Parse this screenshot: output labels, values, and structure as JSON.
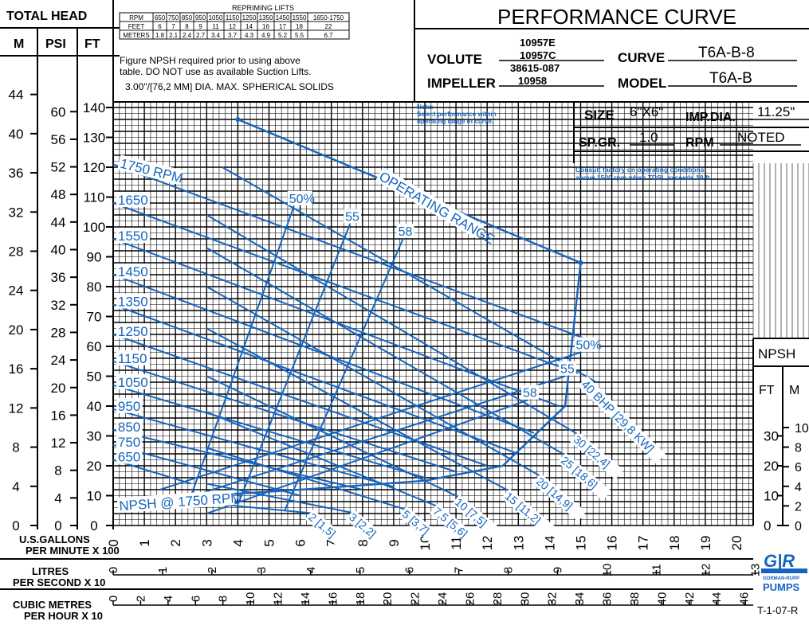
{
  "header": {
    "total_head": "TOTAL HEAD",
    "col_m": "M",
    "col_psi": "PSI",
    "col_ft": "FT",
    "title": "PERFORMANCE CURVE",
    "volute_label": "VOLUTE",
    "volute_value_1": "10957E",
    "volute_value_2": "10957C",
    "impeller_label": "IMPELLER",
    "impeller_value_1": "38615-087",
    "impeller_value_2": "10958",
    "curve_label": "CURVE",
    "curve_value": "T6A-B-8",
    "model_label": "MODEL",
    "model_value": "T6A-B",
    "size_label": "SIZE",
    "size_value": "6\"X6\"",
    "impdia_label": "IMP.DIA.",
    "impdia_value": "11.25\"",
    "spgr_label": "SP.GR.",
    "spgr_value": "1.0",
    "rpm_label": "RPM",
    "rpm_value": "NOTED"
  },
  "repriming": {
    "title": "REPRIMING LIFTS",
    "rows": [
      [
        "RPM",
        "650",
        "750",
        "850",
        "950",
        "1050",
        "1150",
        "1250",
        "1350",
        "1450",
        "1550",
        "1650-1750"
      ],
      [
        "FEET",
        "6",
        "7",
        "8",
        "9",
        "11",
        "12",
        "14",
        "16",
        "17",
        "18",
        "22"
      ],
      [
        "METERS",
        "1.8",
        "2.1",
        "2.4",
        "2.7",
        "3.4",
        "3.7",
        "4.3",
        "4.9",
        "5.2",
        "5.5",
        "6.7"
      ]
    ],
    "note_1": "Figure NPSH required prior to using above",
    "note_2": "table. DO NOT use as available Suction Lifts.",
    "note_3": "3.00\"/[76,2 MM] DIA. MAX. SPHERICAL SOLIDS"
  },
  "notes": {
    "note_1": "Note:",
    "note_2": "Select performance within",
    "note_3": "operating range of curve.",
    "consult_1": "Consult factory on operating conditions",
    "consult_2": "above 1500 rpm when TDSL exceeds 19 ft"
  },
  "axes": {
    "m_ticks": [
      "0",
      "4",
      "8",
      "12",
      "16",
      "20",
      "24",
      "28",
      "32",
      "36",
      "40",
      "44"
    ],
    "psi_ticks": [
      "0",
      "4",
      "8",
      "12",
      "16",
      "20",
      "24",
      "28",
      "32",
      "36",
      "40",
      "44",
      "48",
      "52",
      "56",
      "60"
    ],
    "ft_ticks": [
      "0",
      "10",
      "20",
      "30",
      "40",
      "50",
      "60",
      "70",
      "80",
      "90",
      "100",
      "110",
      "120",
      "130",
      "140"
    ],
    "gpm_label_1": "U.S.GALLONS",
    "gpm_label_2": "PER MINUTE X 100",
    "gpm_ticks": [
      "0",
      "1",
      "2",
      "3",
      "4",
      "5",
      "6",
      "7",
      "8",
      "9",
      "10",
      "11",
      "12",
      "13",
      "14",
      "15",
      "16",
      "17",
      "18",
      "19",
      "20"
    ],
    "lps_label_1": "LITRES",
    "lps_label_2": "PER SECOND X 10",
    "lps_ticks": [
      "0",
      "1",
      "2",
      "3",
      "4",
      "5",
      "6",
      "7",
      "8",
      "9",
      "10",
      "11",
      "12",
      "13"
    ],
    "cmh_label_1": "CUBIC METRES",
    "cmh_label_2": "PER HOUR X 10",
    "cmh_ticks": [
      "0",
      "2",
      "4",
      "6",
      "8",
      "10",
      "12",
      "14",
      "16",
      "18",
      "20",
      "22",
      "24",
      "26",
      "28",
      "30",
      "32",
      "34",
      "36",
      "38",
      "40",
      "42",
      "44",
      "46"
    ],
    "npsh_title": "NPSH",
    "npsh_ft": "FT",
    "npsh_m": "M",
    "npsh_ft_ticks": [
      "0",
      "10",
      "20",
      "30"
    ],
    "npsh_m_ticks": [
      "0",
      "2",
      "4",
      "6",
      "8",
      "10"
    ],
    "drawing_no": "T-1-07-R"
  },
  "logo": {
    "initials": "G|R",
    "line_1": "GORMAN-RUPP",
    "line_2": "PUMPS"
  },
  "chart_data": {
    "type": "line",
    "title": "PERFORMANCE CURVE",
    "xlabel": "U.S.GALLONS PER MINUTE X 100",
    "ylabel": "TOTAL HEAD FT",
    "xlim": [
      0,
      20
    ],
    "ylim": [
      0,
      140
    ],
    "series": [
      {
        "name": "650",
        "label": "650",
        "points": [
          [
            0,
            22
          ],
          [
            2.5,
            14
          ]
        ]
      },
      {
        "name": "750",
        "label": "750",
        "points": [
          [
            0,
            27
          ],
          [
            6,
            10
          ]
        ]
      },
      {
        "name": "850",
        "label": "850",
        "points": [
          [
            0,
            32
          ],
          [
            8,
            12
          ]
        ]
      },
      {
        "name": "950",
        "label": "950",
        "points": [
          [
            0,
            39
          ],
          [
            9,
            13
          ]
        ]
      },
      {
        "name": "1050",
        "label": "1050",
        "points": [
          [
            0,
            47
          ],
          [
            10,
            16
          ]
        ]
      },
      {
        "name": "1150",
        "label": "1150",
        "points": [
          [
            0,
            55
          ],
          [
            11,
            18
          ]
        ]
      },
      {
        "name": "1250",
        "label": "1250",
        "points": [
          [
            0,
            64
          ],
          [
            12,
            20
          ]
        ]
      },
      {
        "name": "1350",
        "label": "1350",
        "points": [
          [
            0,
            74
          ],
          [
            13,
            24
          ]
        ]
      },
      {
        "name": "1450",
        "label": "1450",
        "points": [
          [
            0,
            84
          ],
          [
            13.5,
            31
          ]
        ]
      },
      {
        "name": "1550",
        "label": "1550",
        "points": [
          [
            0,
            96
          ],
          [
            14.3,
            40
          ]
        ]
      },
      {
        "name": "1650",
        "label": "1650",
        "points": [
          [
            0,
            108
          ],
          [
            14.9,
            51
          ]
        ]
      },
      {
        "name": "1750",
        "label": "1750 RPM",
        "points": [
          [
            0,
            121
          ],
          [
            15.3,
            62
          ]
        ]
      },
      {
        "name": "NPSH @ 1750 RPM",
        "label": "NPSH @ 1750 RPM",
        "points": [
          [
            0.5,
            8
          ],
          [
            3,
            10
          ],
          [
            6,
            12
          ],
          [
            10,
            15
          ],
          [
            12.5,
            20
          ],
          [
            14.5,
            40
          ],
          [
            15,
            88
          ]
        ]
      },
      {
        "name": "OPERATING RANGE",
        "label": "OPERATING RANGE",
        "points": [
          [
            4,
            136
          ],
          [
            15,
            88
          ]
        ]
      },
      {
        "name": "2 [1,5]",
        "label": "2 [1,5]",
        "points": [
          [
            2.5,
            8
          ],
          [
            6.5,
            4
          ]
        ]
      },
      {
        "name": "3 [2,2]",
        "label": "3 [2,2]",
        "points": [
          [
            3,
            14
          ],
          [
            7.8,
            4
          ]
        ]
      },
      {
        "name": "5 [3,7]",
        "label": "5 [3,7]",
        "points": [
          [
            3,
            26
          ],
          [
            9.5,
            5
          ]
        ]
      },
      {
        "name": "7,5 [5,6]",
        "label": "7,5 [5,6]",
        "points": [
          [
            3,
            38
          ],
          [
            10.5,
            6
          ]
        ]
      },
      {
        "name": "10 [7,5]",
        "label": "10 [7,5]",
        "points": [
          [
            3,
            50
          ],
          [
            11.2,
            9
          ]
        ]
      },
      {
        "name": "15 [11,2]",
        "label": "15 [11,2]",
        "points": [
          [
            3,
            66
          ],
          [
            12.8,
            11
          ]
        ]
      },
      {
        "name": "20 [14,9]",
        "label": "20 [14,9]",
        "points": [
          [
            3,
            80
          ],
          [
            13.8,
            16
          ]
        ]
      },
      {
        "name": "25 [18,6]",
        "label": "25 [18,6]",
        "points": [
          [
            3,
            93
          ],
          [
            14.6,
            23
          ]
        ]
      },
      {
        "name": "30 [22,4]",
        "label": "30 [22,4]",
        "points": [
          [
            3,
            104
          ],
          [
            15,
            30
          ]
        ]
      },
      {
        "name": "40 BHP [29,8 KW]",
        "label": "40 BHP [29,8 KW]",
        "points": [
          [
            3.5,
            120
          ],
          [
            15.5,
            48
          ]
        ]
      },
      {
        "name": "50%",
        "label": "50%",
        "points": [
          [
            1.5,
            12
          ],
          [
            15,
            58
          ]
        ]
      },
      {
        "name": "55",
        "label": "55",
        "points": [
          [
            2,
            8
          ],
          [
            14.5,
            50
          ]
        ]
      },
      {
        "name": "58",
        "label": "58",
        "points": [
          [
            3,
            4
          ],
          [
            13.3,
            42
          ]
        ]
      },
      {
        "name": "50%",
        "label": "50%",
        "points": [
          [
            2.5,
            10
          ],
          [
            5.8,
            107
          ]
        ]
      },
      {
        "name": "55",
        "label": "55",
        "points": [
          [
            4,
            7
          ],
          [
            7.6,
            101
          ]
        ]
      },
      {
        "name": "58",
        "label": "58",
        "points": [
          [
            5.5,
            5
          ],
          [
            9.3,
            96
          ]
        ]
      }
    ]
  }
}
